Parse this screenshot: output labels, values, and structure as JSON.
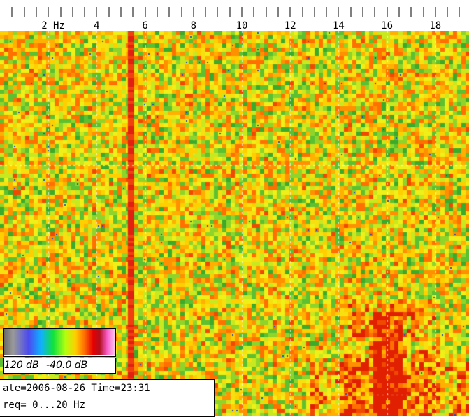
{
  "chart_data": {
    "type": "heatmap",
    "xlabel": "Hz",
    "xlim": [
      0,
      20
    ],
    "x_tick_labels": [
      {
        "value": 2,
        "label": "2 Hz"
      },
      {
        "value": 4,
        "label": "4"
      },
      {
        "value": 6,
        "label": "6"
      },
      {
        "value": 8,
        "label": "8"
      },
      {
        "value": 10,
        "label": "10"
      },
      {
        "value": 12,
        "label": "12"
      },
      {
        "value": 14,
        "label": "14"
      },
      {
        "value": 16,
        "label": "16"
      },
      {
        "value": 18,
        "label": "18"
      }
    ],
    "color_scale_min_label": "120 dB",
    "color_scale_max_label": "-40.0 dB",
    "grid": true,
    "features": [
      {
        "freq_hz": 5.4,
        "description": "strong constant line"
      },
      {
        "freq_hz": 16.2,
        "description": "intense band toward bottom"
      }
    ]
  },
  "info": {
    "date_line": "ate=2006-08-26 Time=23:31",
    "freq_line": "req= 0...20 Hz"
  },
  "colors": {
    "background": "#ffffff",
    "low": "#10c040",
    "mid": "#f0f010",
    "high": "#e80000"
  }
}
